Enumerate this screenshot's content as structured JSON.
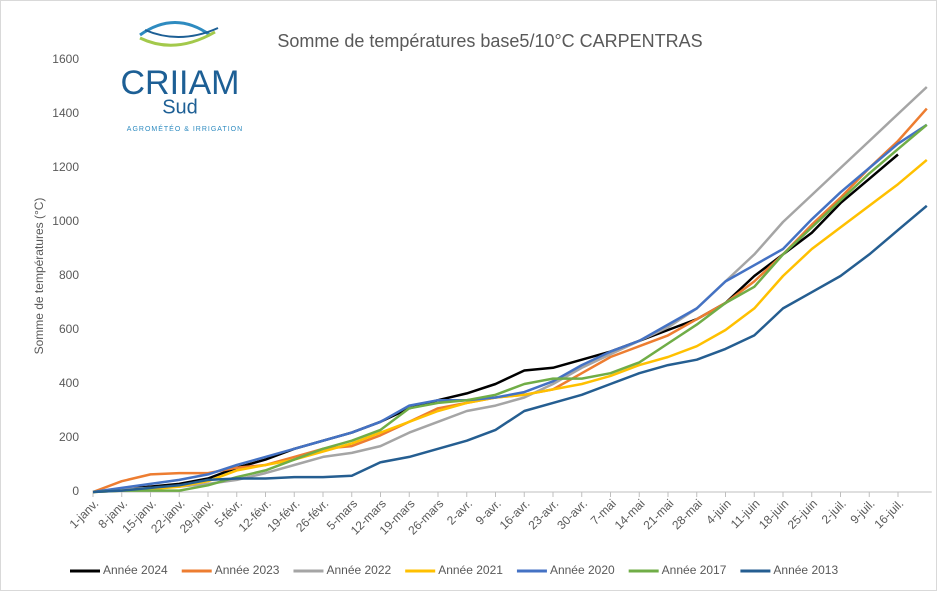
{
  "logo": {
    "name": "CRIIAM",
    "sub": "Sud",
    "tagline": "AGROMÉTÉO & IRRIGATION"
  },
  "chart_data": {
    "type": "line",
    "title": "Somme de températures base5/10°C CARPENTRAS",
    "y_label": "Somme de températures (°C)",
    "categories": [
      "1-janv.",
      "8-janv.",
      "15-janv.",
      "22-janv.",
      "29-janv.",
      "5-févr.",
      "12-févr.",
      "19-févr.",
      "26-févr.",
      "5-mars",
      "12-mars",
      "19-mars",
      "26-mars",
      "2-avr.",
      "9-avr.",
      "16-avr.",
      "23-avr.",
      "30-avr.",
      "7-mai",
      "14-mai",
      "21-mai",
      "28-mai",
      "4-juin",
      "11-juin",
      "18-juin",
      "25-juin",
      "2-juil.",
      "9-juil.",
      "16-juil.",
      null
    ],
    "ylim": [
      0,
      1600
    ],
    "yticks": [
      0,
      200,
      400,
      600,
      800,
      1000,
      1200,
      1400,
      1600
    ],
    "grid": false,
    "legend": "bottom",
    "series": [
      {
        "name": "Année 2024",
        "color": "#000000",
        "values": [
          0,
          10,
          20,
          30,
          50,
          90,
          120,
          160,
          190,
          220,
          260,
          310,
          340,
          365,
          400,
          450,
          460,
          490,
          520,
          560,
          600,
          640,
          700,
          800,
          880,
          960,
          1070,
          1160,
          1250,
          null
        ]
      },
      {
        "name": "Année 2023",
        "color": "#ed7d31",
        "values": [
          0,
          40,
          65,
          70,
          70,
          90,
          100,
          130,
          160,
          170,
          210,
          260,
          310,
          330,
          350,
          360,
          380,
          440,
          500,
          540,
          580,
          640,
          700,
          780,
          880,
          990,
          1090,
          1200,
          1300,
          1420
        ]
      },
      {
        "name": "Année 2022",
        "color": "#a5a5a5",
        "values": [
          0,
          10,
          15,
          20,
          30,
          45,
          70,
          100,
          130,
          145,
          170,
          220,
          260,
          300,
          320,
          350,
          400,
          460,
          510,
          560,
          610,
          680,
          780,
          880,
          1000,
          1100,
          1200,
          1300,
          1400,
          1500
        ]
      },
      {
        "name": "Année 2021",
        "color": "#ffc000",
        "values": [
          0,
          5,
          10,
          20,
          40,
          80,
          100,
          120,
          150,
          180,
          220,
          260,
          300,
          330,
          350,
          360,
          380,
          400,
          430,
          470,
          500,
          540,
          600,
          680,
          800,
          900,
          980,
          1060,
          1140,
          1230
        ]
      },
      {
        "name": "Année 2020",
        "color": "#4472c4",
        "values": [
          0,
          15,
          30,
          45,
          65,
          100,
          130,
          160,
          190,
          220,
          260,
          320,
          340,
          340,
          350,
          370,
          410,
          470,
          520,
          560,
          620,
          680,
          780,
          840,
          900,
          1010,
          1110,
          1200,
          1290,
          1360
        ]
      },
      {
        "name": "Année 2017",
        "color": "#70ad47",
        "values": [
          0,
          5,
          5,
          5,
          25,
          55,
          80,
          120,
          160,
          190,
          230,
          310,
          330,
          340,
          360,
          400,
          420,
          420,
          440,
          480,
          550,
          620,
          700,
          760,
          880,
          980,
          1080,
          1180,
          1270,
          1360
        ]
      },
      {
        "name": "Année 2013",
        "color": "#255e91",
        "values": [
          0,
          5,
          15,
          25,
          45,
          50,
          50,
          55,
          55,
          60,
          110,
          130,
          160,
          190,
          230,
          300,
          330,
          360,
          400,
          440,
          470,
          490,
          530,
          580,
          680,
          740,
          800,
          880,
          970,
          1060
        ]
      }
    ]
  }
}
